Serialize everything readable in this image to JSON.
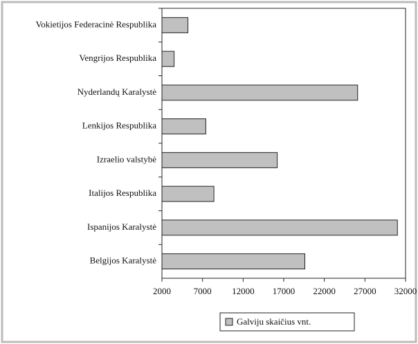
{
  "chart_data": {
    "type": "bar",
    "orientation": "horizontal",
    "categories": [
      "Vokietijos Federacinė Respublika",
      "Vengrijos Respublika",
      "Nyderlandų Karalystė",
      "Lenkijos Respublika",
      "Izraelio valstybė",
      "Italijos Respublika",
      "Ispanijos Karalystė",
      "Belgijos Karalystė"
    ],
    "series": [
      {
        "name": "Galviju skaičius vnt.",
        "color": "#c0c0c0",
        "values": [
          5200,
          3500,
          26100,
          7400,
          16200,
          8400,
          31000,
          19600
        ]
      }
    ],
    "xlim": [
      2000,
      32000
    ],
    "xticks": [
      2000,
      7000,
      12000,
      17000,
      22000,
      27000,
      32000
    ],
    "grid": false,
    "legend": "bottom"
  }
}
